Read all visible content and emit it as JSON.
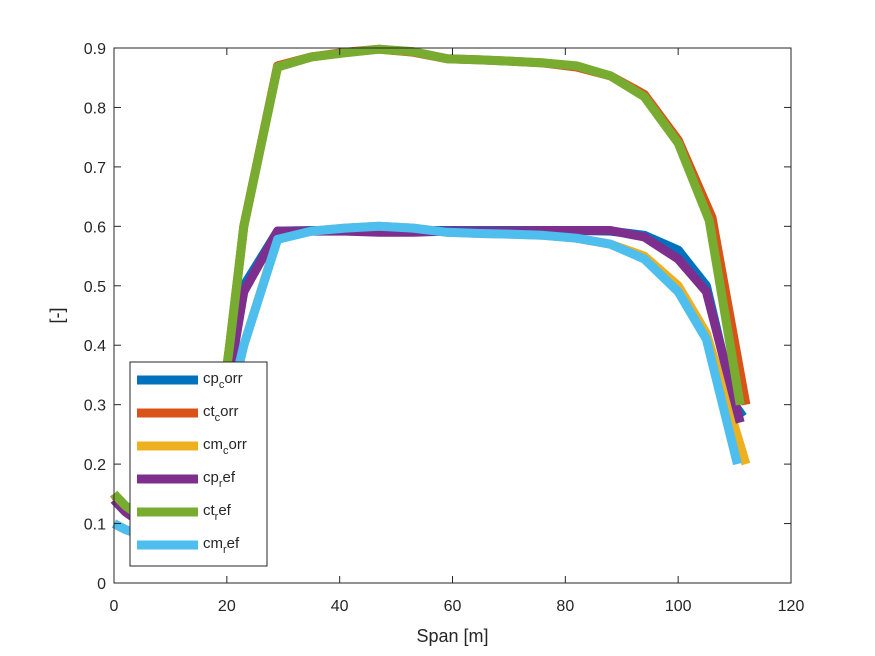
{
  "chart_data": {
    "type": "line",
    "title": "",
    "xlabel": "Span [m]",
    "ylabel": "[-]",
    "xlim": [
      0,
      120
    ],
    "ylim": [
      0,
      0.9
    ],
    "xticks": [
      0,
      20,
      40,
      60,
      80,
      100,
      120
    ],
    "yticks": [
      0,
      0.1,
      0.2,
      0.3,
      0.4,
      0.5,
      0.6,
      0.7,
      0.8,
      0.9
    ],
    "grid": false,
    "legend_position": "bottom-left",
    "series": [
      {
        "name": "cp_corr",
        "legend_main": "cp",
        "legend_sub": "c",
        "legend_rest": "orr",
        "color": "#0072BD",
        "x": [
          0,
          2,
          5,
          9,
          14,
          18,
          20.5,
          23,
          29,
          35,
          41,
          47,
          53,
          59,
          65,
          70,
          76,
          82,
          88,
          94,
          100,
          105,
          110,
          111.5
        ],
        "y": [
          0.14,
          0.12,
          0.1,
          0.1,
          0.12,
          0.2,
          0.35,
          0.5,
          0.592,
          0.593,
          0.593,
          0.593,
          0.593,
          0.593,
          0.593,
          0.593,
          0.593,
          0.593,
          0.592,
          0.585,
          0.56,
          0.5,
          0.3,
          0.28
        ]
      },
      {
        "name": "ct_corr",
        "legend_main": "ct",
        "legend_sub": "c",
        "legend_rest": "orr",
        "color": "#D95319",
        "x": [
          0,
          2,
          5,
          9,
          14,
          18,
          20.5,
          23,
          29,
          35,
          41,
          47,
          53,
          59,
          65,
          70,
          76,
          82,
          88,
          94,
          100,
          106,
          112
        ],
        "y": [
          0.15,
          0.12,
          0.1,
          0.1,
          0.13,
          0.22,
          0.4,
          0.6,
          0.87,
          0.885,
          0.893,
          0.898,
          0.893,
          0.882,
          0.88,
          0.878,
          0.875,
          0.868,
          0.853,
          0.822,
          0.745,
          0.615,
          0.3
        ]
      },
      {
        "name": "cm_corr",
        "legend_main": "cm",
        "legend_sub": "c",
        "legend_rest": "orr",
        "color": "#EDB120",
        "x": [
          0,
          2,
          5,
          9,
          14,
          18,
          20.5,
          23,
          29,
          35,
          41,
          47,
          53,
          59,
          65,
          70,
          76,
          82,
          88,
          94,
          100,
          105,
          112
        ],
        "y": [
          0.1,
          0.09,
          0.08,
          0.08,
          0.1,
          0.18,
          0.3,
          0.4,
          0.58,
          0.592,
          0.597,
          0.6,
          0.597,
          0.59,
          0.588,
          0.587,
          0.585,
          0.58,
          0.57,
          0.55,
          0.5,
          0.42,
          0.2
        ]
      },
      {
        "name": "cp_ref",
        "legend_main": "cp",
        "legend_sub": "r",
        "legend_rest": "ef",
        "color": "#7E2F8E",
        "x": [
          0,
          2,
          5,
          9,
          14,
          18,
          20.5,
          23,
          29,
          35,
          41,
          47,
          53,
          59,
          65,
          70,
          76,
          82,
          88,
          94,
          100,
          105,
          111
        ],
        "y": [
          0.14,
          0.12,
          0.1,
          0.1,
          0.12,
          0.2,
          0.35,
          0.49,
          0.592,
          0.592,
          0.592,
          0.59,
          0.59,
          0.592,
          0.592,
          0.592,
          0.593,
          0.593,
          0.593,
          0.582,
          0.545,
          0.49,
          0.27
        ]
      },
      {
        "name": "ct_ref",
        "legend_main": "ct",
        "legend_sub": "r",
        "legend_rest": "ef",
        "color": "#77AC30",
        "x": [
          0,
          2,
          5,
          9,
          14,
          18,
          20.5,
          23,
          29,
          35,
          41,
          47,
          53,
          59,
          65,
          70,
          76,
          82,
          88,
          94,
          100,
          105.5,
          111
        ],
        "y": [
          0.15,
          0.13,
          0.11,
          0.1,
          0.13,
          0.22,
          0.4,
          0.6,
          0.868,
          0.885,
          0.892,
          0.898,
          0.894,
          0.882,
          0.88,
          0.878,
          0.875,
          0.87,
          0.853,
          0.818,
          0.74,
          0.61,
          0.3
        ]
      },
      {
        "name": "cm_ref",
        "legend_main": "cm",
        "legend_sub": "r",
        "legend_rest": "ef",
        "color": "#4DBEEE",
        "x": [
          0,
          2,
          5,
          9,
          14,
          18,
          20.5,
          23,
          29,
          35,
          41,
          47,
          53,
          59,
          65,
          70,
          76,
          82,
          88,
          94,
          100,
          105,
          110.5
        ],
        "y": [
          0.1,
          0.09,
          0.08,
          0.08,
          0.1,
          0.18,
          0.3,
          0.4,
          0.578,
          0.592,
          0.597,
          0.6,
          0.597,
          0.59,
          0.588,
          0.587,
          0.585,
          0.58,
          0.57,
          0.545,
          0.49,
          0.41,
          0.2
        ]
      }
    ]
  }
}
